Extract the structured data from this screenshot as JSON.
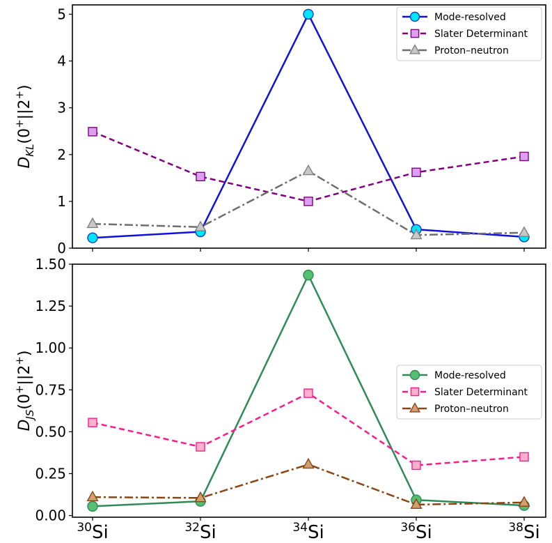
{
  "chart_data": [
    {
      "type": "line",
      "title": "",
      "xlabel": "",
      "ylabel": {
        "base": "D",
        "sub": "KL",
        "rest": "(0",
        "sup1": "+",
        "mid": "||2",
        "sup2": "+",
        "end": ")"
      },
      "categories": [
        {
          "mass": "30",
          "symbol": "Si"
        },
        {
          "mass": "32",
          "symbol": "Si"
        },
        {
          "mass": "34",
          "symbol": "Si"
        },
        {
          "mass": "36",
          "symbol": "Si"
        },
        {
          "mass": "38",
          "symbol": "Si"
        }
      ],
      "ylim": [
        0,
        5.2
      ],
      "yticks": [
        0,
        1,
        2,
        3,
        4,
        5
      ],
      "ytick_labels": [
        "0",
        "1",
        "2",
        "3",
        "4",
        "5"
      ],
      "grid": false,
      "legend_position": "top-right",
      "series": [
        {
          "name": "Mode-resolved",
          "values": [
            0.22,
            0.35,
            5.0,
            0.4,
            0.24
          ],
          "color": "#1010e0",
          "marker": "circle",
          "marker_fill": "#00e5ff",
          "marker_edge": "#1a3fb0",
          "dash": ""
        },
        {
          "name": "Slater Determinant",
          "values": [
            2.49,
            1.53,
            1.0,
            1.62,
            1.96
          ],
          "color": "#800080",
          "marker": "square",
          "marker_fill": "#dda0f0",
          "marker_edge": "#800080",
          "dash": "8 5"
        },
        {
          "name": "Proton–neutron",
          "values": [
            0.52,
            0.45,
            1.65,
            0.28,
            0.33
          ],
          "color": "#6e6e6e",
          "marker": "triangle",
          "marker_fill": "#c8c8c8",
          "marker_edge": "#808080",
          "dash": "12 4 3 4"
        }
      ]
    },
    {
      "type": "line",
      "title": "",
      "xlabel": "",
      "ylabel": {
        "base": "D",
        "sub": "JS",
        "rest": "(0",
        "sup1": "+",
        "mid": "||2",
        "sup2": "+",
        "end": ")"
      },
      "categories": [
        {
          "mass": "30",
          "symbol": "Si"
        },
        {
          "mass": "32",
          "symbol": "Si"
        },
        {
          "mass": "34",
          "symbol": "Si"
        },
        {
          "mass": "36",
          "symbol": "Si"
        },
        {
          "mass": "38",
          "symbol": "Si"
        }
      ],
      "ylim": [
        -0.01,
        1.5
      ],
      "yticks": [
        0,
        0.25,
        0.5,
        0.75,
        1.0,
        1.25,
        1.5
      ],
      "ytick_labels": [
        "0.00",
        "0.25",
        "0.50",
        "0.75",
        "1.00",
        "1.25",
        "1.50"
      ],
      "grid": false,
      "legend_position": "center-right",
      "series": [
        {
          "name": "Mode-resolved",
          "values": [
            0.055,
            0.085,
            1.435,
            0.093,
            0.06
          ],
          "color": "#2e8b57",
          "marker": "circle",
          "marker_fill": "#55c070",
          "marker_edge": "#2e8b57",
          "dash": ""
        },
        {
          "name": "Slater Determinant",
          "values": [
            0.555,
            0.41,
            0.73,
            0.3,
            0.35
          ],
          "color": "#ff1a8c",
          "marker": "square",
          "marker_fill": "#ffb0cc",
          "marker_edge": "#ff1a8c",
          "dash": "8 5"
        },
        {
          "name": "Proton–neutron",
          "values": [
            0.11,
            0.105,
            0.305,
            0.065,
            0.078
          ],
          "color": "#8b4513",
          "marker": "triangle",
          "marker_fill": "#d2a070",
          "marker_edge": "#8b4513",
          "dash": "12 4 3 4"
        }
      ]
    }
  ]
}
